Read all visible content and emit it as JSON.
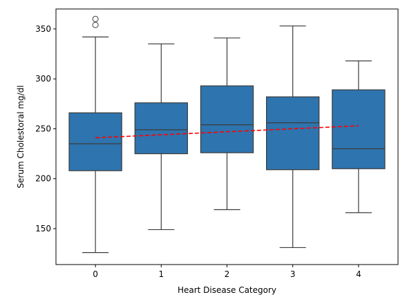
{
  "chart_data": {
    "type": "box",
    "xlabel": "Heart Disease Category",
    "ylabel": "Serum Cholestoral mg/dl",
    "categories": [
      "0",
      "1",
      "2",
      "3",
      "4"
    ],
    "ylim": [
      114,
      370
    ],
    "yticks": [
      150,
      200,
      250,
      300,
      350
    ],
    "box_color": "#2e74ae",
    "edge_color": "#3b3b3b",
    "trend_color": "#ff0000",
    "boxes": [
      {
        "category": "0",
        "whisker_low": 126,
        "q1": 208,
        "median": 235,
        "q3": 266,
        "whisker_high": 342,
        "outliers": [
          354,
          360
        ]
      },
      {
        "category": "1",
        "whisker_low": 149,
        "q1": 225,
        "median": 249,
        "q3": 276,
        "whisker_high": 335,
        "outliers": []
      },
      {
        "category": "2",
        "whisker_low": 169,
        "q1": 226,
        "median": 254,
        "q3": 293,
        "whisker_high": 341,
        "outliers": []
      },
      {
        "category": "3",
        "whisker_low": 131,
        "q1": 209,
        "median": 256,
        "q3": 282,
        "whisker_high": 353,
        "outliers": []
      },
      {
        "category": "4",
        "whisker_low": 166,
        "q1": 210,
        "median": 230,
        "q3": 289,
        "whisker_high": 318,
        "outliers": []
      }
    ],
    "trend_line": {
      "style": "dashed",
      "x": [
        0,
        4
      ],
      "y": [
        241,
        253
      ]
    }
  }
}
